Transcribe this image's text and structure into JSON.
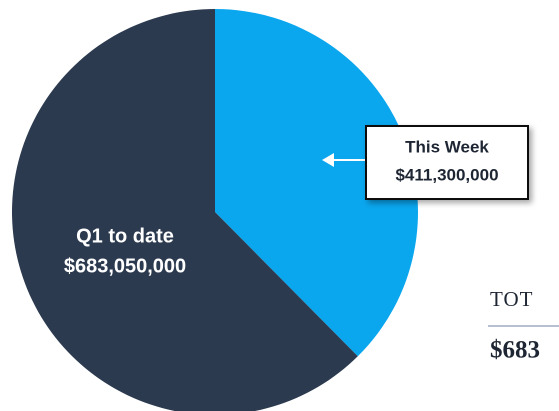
{
  "chart_data": {
    "type": "pie",
    "categories": [
      "This Week",
      "Q1 to date"
    ],
    "values": [
      411300000,
      683050000
    ],
    "value_labels": [
      "$411,300,000",
      "$683,050,000"
    ],
    "colors": [
      "#0aa6ee",
      "#2c3a4f"
    ],
    "annotations": [
      "TOT",
      "$683"
    ]
  }
}
